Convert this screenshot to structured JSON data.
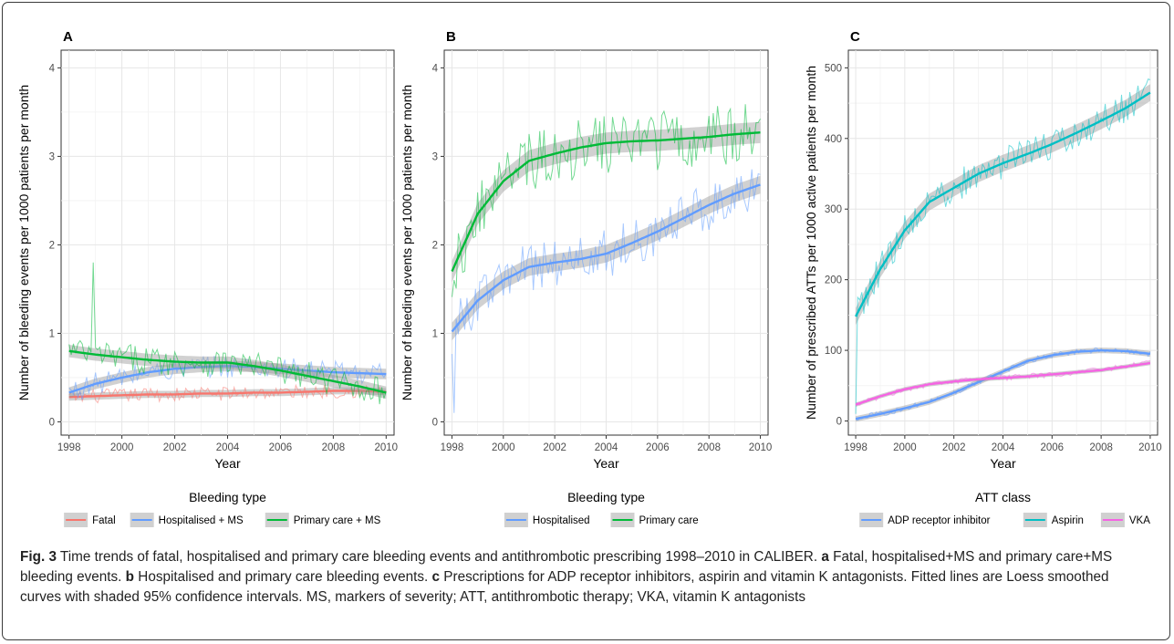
{
  "figure": {
    "caption": {
      "fig_label": "Fig. 3",
      "intro": " Time trends of fatal, hospitalised and primary care bleeding events and antithrombotic prescribing 1998–2010 in CALIBER. ",
      "a_label": "a",
      "a_text": " Fatal, hospitalised+MS and primary care+MS bleeding events. ",
      "b_label": "b",
      "b_text": " Hospitalised and primary care bleeding events. ",
      "c_label": "c",
      "c_text": " Prescriptions for ADP receptor inhibitors, aspirin and vitamin K antagonists. Fitted lines are Loess smoothed curves with shaded 95% confidence intervals. MS, markers of severity; ATT, antithrombotic therapy; VKA, vitamin K antagonists"
    }
  },
  "chart_data": [
    {
      "type": "line",
      "panel_label": "A",
      "xlabel": "Year",
      "ylabel": "Number of bleeding events per 1000 patients per month",
      "xlim": [
        1997.7,
        2010.3
      ],
      "ylim": [
        -0.15,
        4.2
      ],
      "x_ticks": [
        1998,
        2000,
        2002,
        2004,
        2006,
        2008,
        2010
      ],
      "y_ticks": [
        0,
        1,
        2,
        3,
        4
      ],
      "grid": true,
      "legend_position": "bottom",
      "legend_title": "Bleeding type",
      "x": [
        1998,
        1999,
        2000,
        2001,
        2002,
        2003,
        2004,
        2005,
        2006,
        2007,
        2008,
        2009,
        2010
      ],
      "series": [
        {
          "name": "Fatal",
          "color": "#F8766D",
          "smooth": [
            0.28,
            0.29,
            0.3,
            0.31,
            0.31,
            0.32,
            0.32,
            0.33,
            0.33,
            0.34,
            0.35,
            0.35,
            0.34
          ],
          "ci": 0.04,
          "noise": 0.08
        },
        {
          "name": "Hospitalised + MS",
          "color": "#619CFF",
          "smooth": [
            0.33,
            0.43,
            0.5,
            0.56,
            0.6,
            0.62,
            0.63,
            0.62,
            0.6,
            0.58,
            0.56,
            0.55,
            0.54
          ],
          "ci": 0.06,
          "noise": 0.13
        },
        {
          "name": "Primary care + MS",
          "color": "#00BA38",
          "smooth": [
            0.8,
            0.76,
            0.73,
            0.7,
            0.68,
            0.67,
            0.67,
            0.63,
            0.58,
            0.52,
            0.46,
            0.4,
            0.33
          ],
          "ci": 0.07,
          "noise": 0.16,
          "spike_at": 1998.9,
          "spike_value": 1.8
        }
      ]
    },
    {
      "type": "line",
      "panel_label": "B",
      "xlabel": "Year",
      "ylabel": "Number of bleeding events per 1000 patients per month",
      "xlim": [
        1997.7,
        2010.3
      ],
      "ylim": [
        -0.15,
        4.2
      ],
      "x_ticks": [
        1998,
        2000,
        2002,
        2004,
        2006,
        2008,
        2010
      ],
      "y_ticks": [
        0,
        1,
        2,
        3,
        4
      ],
      "grid": true,
      "legend_position": "bottom",
      "legend_title": "Bleeding type",
      "x": [
        1998,
        1999,
        2000,
        2001,
        2002,
        2003,
        2004,
        2005,
        2006,
        2007,
        2008,
        2009,
        2010
      ],
      "series": [
        {
          "name": "Hospitalised",
          "color": "#619CFF",
          "smooth": [
            1.02,
            1.37,
            1.6,
            1.75,
            1.8,
            1.84,
            1.9,
            2.02,
            2.15,
            2.3,
            2.45,
            2.58,
            2.68
          ],
          "ci": 0.1,
          "noise": 0.28,
          "dip_at": 1998.1,
          "dip_value": 0.1
        },
        {
          "name": "Primary care",
          "color": "#00BA38",
          "smooth": [
            1.7,
            2.35,
            2.72,
            2.95,
            3.03,
            3.1,
            3.15,
            3.17,
            3.18,
            3.2,
            3.22,
            3.25,
            3.27
          ],
          "ci": 0.12,
          "noise": 0.35
        }
      ]
    },
    {
      "type": "line",
      "panel_label": "C",
      "xlabel": "Year",
      "ylabel": "Number of prescribed ATTs per 1000 active patients per month",
      "xlim": [
        1997.7,
        2010.3
      ],
      "ylim": [
        -20,
        525
      ],
      "x_ticks": [
        1998,
        2000,
        2002,
        2004,
        2006,
        2008,
        2010
      ],
      "y_ticks": [
        0,
        100,
        200,
        300,
        400,
        500
      ],
      "grid": true,
      "legend_position": "bottom",
      "legend_title": "ATT class",
      "x": [
        1998,
        1999,
        2000,
        2001,
        2002,
        2003,
        2004,
        2005,
        2006,
        2007,
        2008,
        2009,
        2010
      ],
      "series": [
        {
          "name": "ADP receptor inhibitor",
          "color": "#619CFF",
          "smooth": [
            3,
            10,
            18,
            27,
            40,
            55,
            70,
            85,
            93,
            98,
            100,
            99,
            95
          ],
          "ci": 4,
          "noise": 4
        },
        {
          "name": "Aspirin",
          "color": "#00BFC4",
          "smooth": [
            148,
            215,
            270,
            310,
            330,
            350,
            365,
            378,
            392,
            408,
            425,
            443,
            465
          ],
          "ci": 12,
          "noise": 22,
          "dip_at": 1998.0,
          "dip_value": 10
        },
        {
          "name": "VKA",
          "color": "#F564E3",
          "smooth": [
            23,
            35,
            45,
            52,
            56,
            59,
            61,
            63,
            66,
            69,
            72,
            77,
            82
          ],
          "ci": 3,
          "noise": 4
        }
      ]
    }
  ]
}
